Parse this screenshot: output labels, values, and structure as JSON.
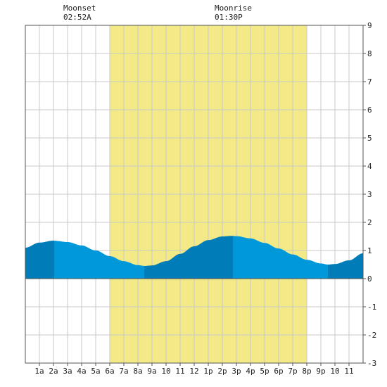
{
  "chart_data": {
    "type": "area",
    "title": "",
    "xlabel": "",
    "ylabel": "",
    "xlim": [
      0,
      24
    ],
    "ylim": [
      -3,
      9
    ],
    "grid": true,
    "daylight": {
      "start": 6,
      "end": 20,
      "color": "#f3ea87"
    },
    "colors": {
      "tide_light": "#0098d8",
      "tide_dark": "#007db8",
      "grid": "#c8c8c8",
      "border": "#555555"
    },
    "moon_events": [
      {
        "label": "Moonset",
        "time": "02:52A",
        "hour": 2.87
      },
      {
        "label": "Moonrise",
        "time": "01:30P",
        "hour": 13.5
      }
    ],
    "x_tick_labels": [
      "1a",
      "2a",
      "3a",
      "4a",
      "5a",
      "6a",
      "7a",
      "8a",
      "9a",
      "10",
      "11",
      "12",
      "1p",
      "2p",
      "3p",
      "4p",
      "5p",
      "6p",
      "7p",
      "8p",
      "9p",
      "10",
      "11"
    ],
    "y_tick_labels": [
      "9",
      "8",
      "7",
      "6",
      "5",
      "4",
      "3",
      "2",
      "1",
      "0",
      "-1",
      "-2",
      "-3"
    ],
    "series": [
      {
        "x": [
          0,
          1,
          2,
          3,
          4,
          5,
          6,
          7,
          8,
          8.5,
          9,
          10,
          11,
          12,
          13,
          14,
          14.7,
          15,
          16,
          17,
          18,
          19,
          20,
          21,
          21.5,
          22,
          23,
          24
        ],
        "y": [
          1.1,
          1.28,
          1.35,
          1.3,
          1.18,
          1.0,
          0.8,
          0.62,
          0.48,
          0.45,
          0.47,
          0.62,
          0.88,
          1.15,
          1.37,
          1.5,
          1.52,
          1.51,
          1.43,
          1.27,
          1.07,
          0.86,
          0.67,
          0.54,
          0.5,
          0.52,
          0.65,
          0.9
        ]
      }
    ],
    "segments": [
      {
        "start": 0,
        "end": 2.05,
        "shade": "dark"
      },
      {
        "start": 2.05,
        "end": 8.45,
        "shade": "light"
      },
      {
        "start": 8.45,
        "end": 14.75,
        "shade": "dark"
      },
      {
        "start": 14.75,
        "end": 21.5,
        "shade": "light"
      },
      {
        "start": 21.5,
        "end": 24,
        "shade": "dark"
      }
    ]
  }
}
